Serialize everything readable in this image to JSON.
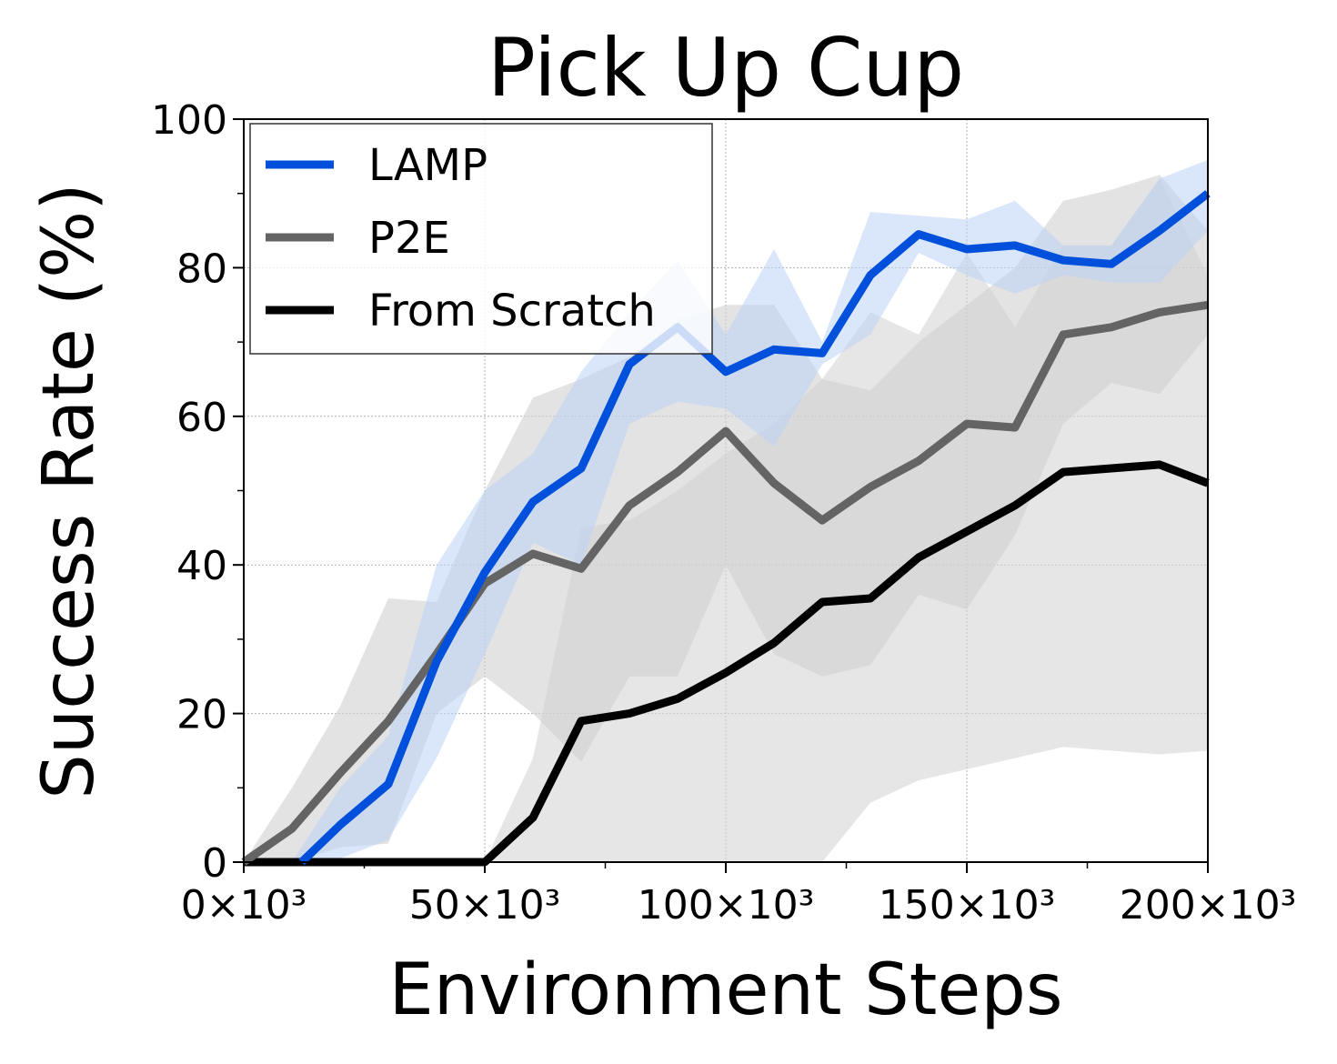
{
  "chart_data": {
    "type": "line",
    "title": "Pick Up Cup",
    "xlabel": "Environment Steps",
    "ylabel": "Success Rate (%)",
    "xlim": [
      0,
      200000
    ],
    "ylim": [
      0,
      100
    ],
    "x_ticks": [
      0,
      50000,
      100000,
      150000,
      200000
    ],
    "x_tick_labels": [
      "0×10³",
      "50×10³",
      "100×10³",
      "150×10³",
      "200×10³"
    ],
    "y_ticks": [
      0,
      20,
      40,
      60,
      80,
      100
    ],
    "y_tick_labels": [
      "0",
      "20",
      "40",
      "60",
      "80",
      "100"
    ],
    "grid": true,
    "legend_position": "upper-left",
    "x": [
      0,
      10000,
      20000,
      30000,
      40000,
      50000,
      60000,
      70000,
      80000,
      90000,
      100000,
      110000,
      120000,
      130000,
      140000,
      150000,
      160000,
      170000,
      180000,
      190000,
      200000
    ],
    "series": [
      {
        "name": "LAMP",
        "color": "#0050dc",
        "band_color": "#bcd2f5",
        "values": [
          null,
          0,
          5,
          10.5,
          27,
          39,
          48.5,
          53,
          67,
          72,
          66,
          69,
          68.5,
          79,
          84.5,
          82.5,
          83,
          81,
          80.5,
          85,
          90
        ],
        "lower": [
          null,
          0,
          0.5,
          3,
          14,
          28,
          43,
          40,
          59,
          62,
          61,
          56,
          67,
          71,
          82,
          79,
          76.5,
          79,
          78,
          78,
          85
        ],
        "upper": [
          null,
          0,
          10,
          17,
          40,
          50,
          55,
          66,
          74,
          81,
          71,
          82.5,
          70,
          87.5,
          87,
          86.5,
          89,
          83,
          83,
          92,
          94.5
        ]
      },
      {
        "name": "P2E",
        "color": "#646464",
        "band_color": "#d0d0d0",
        "values": [
          0,
          4.5,
          12,
          19,
          28,
          37.5,
          41.5,
          39.5,
          48,
          52.5,
          58,
          51,
          46,
          50.5,
          54,
          59,
          58.5,
          71,
          72,
          74,
          75
        ],
        "lower": [
          0,
          0,
          2,
          2.5,
          20,
          25,
          20,
          13.5,
          25,
          25,
          40,
          28,
          25,
          26.5,
          36,
          34,
          44,
          59,
          64.5,
          63,
          71
        ],
        "upper": [
          0,
          10,
          21,
          35.5,
          35,
          50,
          62.5,
          65,
          68,
          73,
          75,
          75,
          65,
          63.5,
          70,
          75,
          80,
          89,
          90.5,
          92.5,
          85
        ]
      },
      {
        "name": "From Scratch",
        "color": "#000000",
        "band_color": "#d6d6d6",
        "values": [
          0,
          0,
          0,
          0,
          0,
          0,
          6,
          19,
          20,
          22,
          25.5,
          29.5,
          35,
          35.5,
          41,
          44.5,
          48,
          52.5,
          53,
          53.5,
          51
        ],
        "lower": [
          0,
          0,
          0,
          0,
          0,
          0,
          0,
          0,
          0,
          0,
          0,
          0,
          0,
          8,
          11,
          12.5,
          14,
          15.5,
          15,
          14.5,
          15
        ],
        "upper": [
          0,
          0,
          0,
          0,
          0,
          0,
          14,
          45,
          46,
          50,
          55,
          59,
          65,
          74,
          71,
          82,
          72,
          83,
          83,
          92,
          79
        ]
      }
    ]
  }
}
